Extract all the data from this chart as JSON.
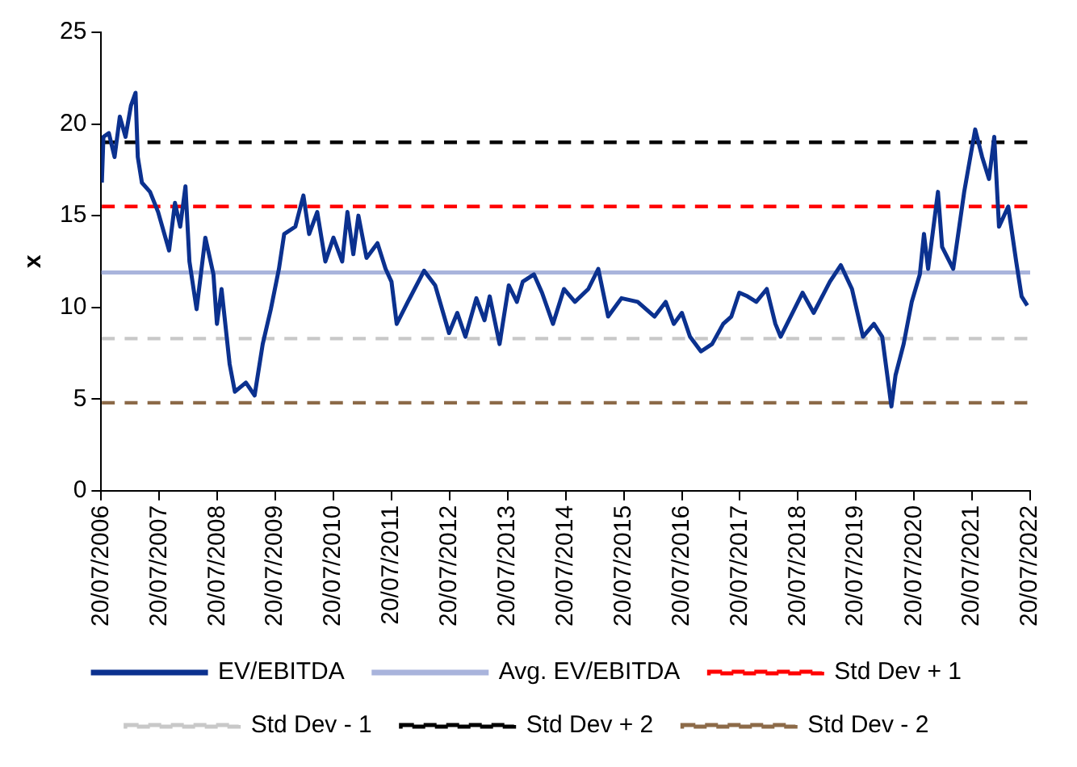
{
  "chart_data": {
    "type": "line",
    "ylabel": "x",
    "legend": "bottom",
    "grid": false,
    "xlim": [
      "2006-07-20",
      "2022-07-20"
    ],
    "ylim": [
      0,
      25
    ],
    "yticks": [
      0,
      5,
      10,
      15,
      20,
      25
    ],
    "xticks": [
      {
        "value": "2006-07-20",
        "label": "20/07/2006"
      },
      {
        "value": "2007-07-20",
        "label": "20/07/2007"
      },
      {
        "value": "2008-07-20",
        "label": "20/07/2008"
      },
      {
        "value": "2009-07-20",
        "label": "20/07/2009"
      },
      {
        "value": "2010-07-20",
        "label": "20/07/2010"
      },
      {
        "value": "2011-07-20",
        "label": "20/07/2011"
      },
      {
        "value": "2012-07-20",
        "label": "20/07/2012"
      },
      {
        "value": "2013-07-20",
        "label": "20/07/2013"
      },
      {
        "value": "2014-07-20",
        "label": "20/07/2014"
      },
      {
        "value": "2015-07-20",
        "label": "20/07/2015"
      },
      {
        "value": "2016-07-20",
        "label": "20/07/2016"
      },
      {
        "value": "2017-07-20",
        "label": "20/07/2017"
      },
      {
        "value": "2018-07-20",
        "label": "20/07/2018"
      },
      {
        "value": "2019-07-20",
        "label": "20/07/2019"
      },
      {
        "value": "2020-07-20",
        "label": "20/07/2020"
      },
      {
        "value": "2021-07-20",
        "label": "20/07/2021"
      },
      {
        "value": "2022-07-20",
        "label": "20/07/2022"
      }
    ],
    "series": [
      {
        "name": "EV/EBITDA",
        "color": "#0b318f",
        "line_style": "solid",
        "x": [
          "2006-07-24",
          "2006-08-03",
          "2006-09-06",
          "2006-10-12",
          "2006-11-14",
          "2006-12-20",
          "2007-01-23",
          "2007-02-21",
          "2007-03-07",
          "2007-04-02",
          "2007-05-23",
          "2007-07-13",
          "2007-09-20",
          "2007-10-27",
          "2007-11-29",
          "2008-01-01",
          "2008-01-26",
          "2008-03-11",
          "2008-05-05",
          "2008-06-25",
          "2008-07-17",
          "2008-08-15",
          "2008-10-05",
          "2008-11-07",
          "2009-01-15",
          "2009-03-11",
          "2009-05-01",
          "2009-06-21",
          "2009-08-11",
          "2009-09-13",
          "2009-11-22",
          "2010-01-12",
          "2010-02-17",
          "2010-04-09",
          "2010-05-30",
          "2010-07-20",
          "2010-09-13",
          "2010-10-16",
          "2010-11-22",
          "2010-12-24",
          "2011-02-13",
          "2011-04-23",
          "2011-06-13",
          "2011-07-20",
          "2011-08-22",
          "2011-10-31",
          "2012-02-10",
          "2012-04-20",
          "2012-07-16",
          "2012-09-06",
          "2012-10-27",
          "2013-01-04",
          "2013-02-24",
          "2013-03-29",
          "2013-05-30",
          "2013-07-27",
          "2013-09-16",
          "2013-10-23",
          "2014-01-01",
          "2014-02-21",
          "2014-05-01",
          "2014-07-09",
          "2014-09-16",
          "2014-12-09",
          "2015-02-10",
          "2015-04-13",
          "2015-07-06",
          "2015-10-16",
          "2016-01-30",
          "2016-04-09",
          "2016-05-30",
          "2016-07-20",
          "2016-09-09",
          "2016-11-17",
          "2017-01-26",
          "2017-04-06",
          "2017-05-27",
          "2017-07-16",
          "2017-09-06",
          "2017-10-31",
          "2018-01-05",
          "2018-02-28",
          "2018-04-02",
          "2018-08-18",
          "2018-10-27",
          "2019-02-06",
          "2019-04-16",
          "2019-06-25",
          "2019-09-02",
          "2019-11-10",
          "2020-01-01",
          "2020-02-28",
          "2020-03-25",
          "2020-05-15",
          "2020-07-05",
          "2020-08-25",
          "2020-09-20",
          "2020-10-16",
          "2020-12-17",
          "2021-01-12",
          "2021-03-23",
          "2021-05-31",
          "2021-08-08",
          "2021-09-21",
          "2021-11-03",
          "2021-12-06",
          "2022-01-05",
          "2022-03-04",
          "2022-04-23",
          "2022-05-27",
          "2022-07-02"
        ],
        "values": [
          16.8,
          19.3,
          19.5,
          18.2,
          20.4,
          19.3,
          21.0,
          21.7,
          18.2,
          16.8,
          16.3,
          15.2,
          13.1,
          15.7,
          14.4,
          16.6,
          12.5,
          9.9,
          13.8,
          11.8,
          9.1,
          11.0,
          6.9,
          5.4,
          5.9,
          5.2,
          8.0,
          9.9,
          12.1,
          14.0,
          14.4,
          16.1,
          14.0,
          15.2,
          12.5,
          13.8,
          12.5,
          15.2,
          12.9,
          15.0,
          12.7,
          13.5,
          12.1,
          11.4,
          9.1,
          10.3,
          12.0,
          11.2,
          8.6,
          9.7,
          8.4,
          10.5,
          9.3,
          10.6,
          8.0,
          11.2,
          10.3,
          11.4,
          11.8,
          10.8,
          9.1,
          11.0,
          10.3,
          11.0,
          12.1,
          9.5,
          10.5,
          10.3,
          9.5,
          10.3,
          9.1,
          9.7,
          8.4,
          7.6,
          8.0,
          9.1,
          9.5,
          10.8,
          10.6,
          10.3,
          11.0,
          9.1,
          8.4,
          10.8,
          9.7,
          11.4,
          12.3,
          11.0,
          8.4,
          9.1,
          8.4,
          4.6,
          6.3,
          8.0,
          10.3,
          11.8,
          14.0,
          12.1,
          16.3,
          13.3,
          12.1,
          16.3,
          19.7,
          18.2,
          17.0,
          19.3,
          14.4,
          15.5,
          12.5,
          10.6,
          10.1
        ]
      },
      {
        "name": "Avg. EV/EBITDA",
        "color": "#a9b4dc",
        "line_style": "solid",
        "x": [
          "2006-07-20",
          "2022-07-20"
        ],
        "values": [
          11.9,
          11.9
        ]
      },
      {
        "name": "Std Dev + 1",
        "color": "#ff0000",
        "line_style": "dashed",
        "x": [
          "2006-07-24",
          "2022-07-02"
        ],
        "values": [
          15.5,
          15.5
        ]
      },
      {
        "name": "Std Dev - 1",
        "color": "#c8c8c8",
        "line_style": "dashed",
        "x": [
          "2006-07-24",
          "2022-07-02"
        ],
        "values": [
          8.3,
          8.3
        ]
      },
      {
        "name": "Std Dev + 2",
        "color": "#000000",
        "line_style": "dashed",
        "x": [
          "2006-07-24",
          "2022-07-02"
        ],
        "values": [
          19.0,
          19.0
        ]
      },
      {
        "name": "Std Dev - 2",
        "color": "#8c6a48",
        "line_style": "dashed",
        "x": [
          "2006-07-24",
          "2022-07-02"
        ],
        "values": [
          4.8,
          4.8
        ]
      }
    ]
  }
}
